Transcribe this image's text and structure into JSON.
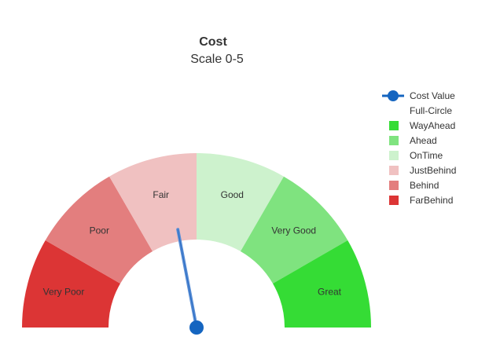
{
  "chart_data": {
    "type": "gauge",
    "title": "Cost",
    "subtitle": "Scale 0-5",
    "scale": [
      0,
      5
    ],
    "value": 2.2,
    "needle_color": "#1565c0",
    "segments": [
      {
        "label": "Very Poor",
        "from": 0.0,
        "to": 0.833,
        "color": "#dc3535"
      },
      {
        "label": "Poor",
        "from": 0.833,
        "to": 1.667,
        "color": "#e37e7e"
      },
      {
        "label": "Fair",
        "from": 1.667,
        "to": 2.5,
        "color": "#f0c1c1"
      },
      {
        "label": "Good",
        "from": 2.5,
        "to": 3.333,
        "color": "#cdf2cd"
      },
      {
        "label": "Very Good",
        "from": 3.333,
        "to": 4.167,
        "color": "#7fe37f"
      },
      {
        "label": "Great",
        "from": 4.167,
        "to": 5.0,
        "color": "#35dc35"
      }
    ],
    "legend": {
      "position": "top-right",
      "items": [
        {
          "label": "Cost Value",
          "kind": "line-marker",
          "color": "#1565c0"
        },
        {
          "label": "Full-Circle",
          "kind": "none",
          "color": ""
        },
        {
          "label": "WayAhead",
          "kind": "swatch",
          "color": "#35dc35"
        },
        {
          "label": "Ahead",
          "kind": "swatch",
          "color": "#7fe37f"
        },
        {
          "label": "OnTime",
          "kind": "swatch",
          "color": "#cdf2cd"
        },
        {
          "label": "JustBehind",
          "kind": "swatch",
          "color": "#f0c1c1"
        },
        {
          "label": "Behind",
          "kind": "swatch",
          "color": "#e37e7e"
        },
        {
          "label": "FarBehind",
          "kind": "swatch",
          "color": "#dc3535"
        }
      ]
    }
  }
}
